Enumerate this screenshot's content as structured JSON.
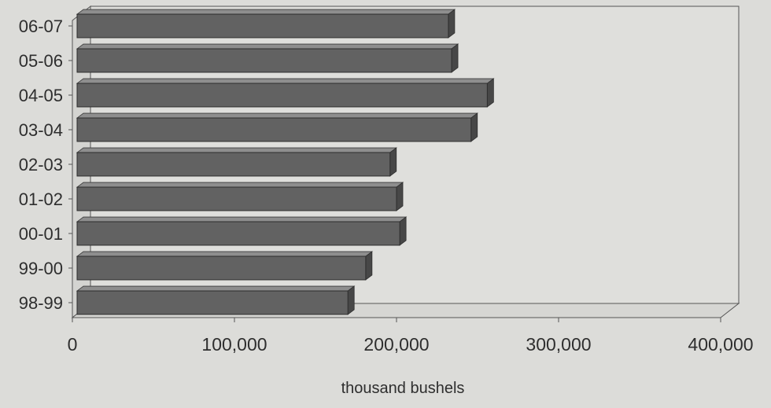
{
  "chart_data": {
    "type": "bar",
    "orientation": "horizontal",
    "categories": [
      "06-07",
      "05-06",
      "04-05",
      "03-04",
      "02-03",
      "01-02",
      "00-01",
      "99-00",
      "98-99"
    ],
    "values": [
      232000,
      234000,
      256000,
      246000,
      196000,
      200000,
      202000,
      181000,
      170000
    ],
    "xlabel": "thousand bushels",
    "ylabel": "",
    "xlim": [
      0,
      400000
    ],
    "x_ticks": [
      0,
      100000,
      200000,
      300000,
      400000
    ],
    "x_tick_labels": [
      "0",
      "100,000",
      "200,000",
      "300,000",
      "400,000"
    ],
    "grid": false,
    "style": "3d",
    "colors": {
      "bar_front": "#626262",
      "bar_top": "#8e8e8e",
      "bar_side": "#474747",
      "plot_wall": "#dfdfdc",
      "page_background": "#dcdcd9",
      "axis_line": "#555555"
    }
  }
}
